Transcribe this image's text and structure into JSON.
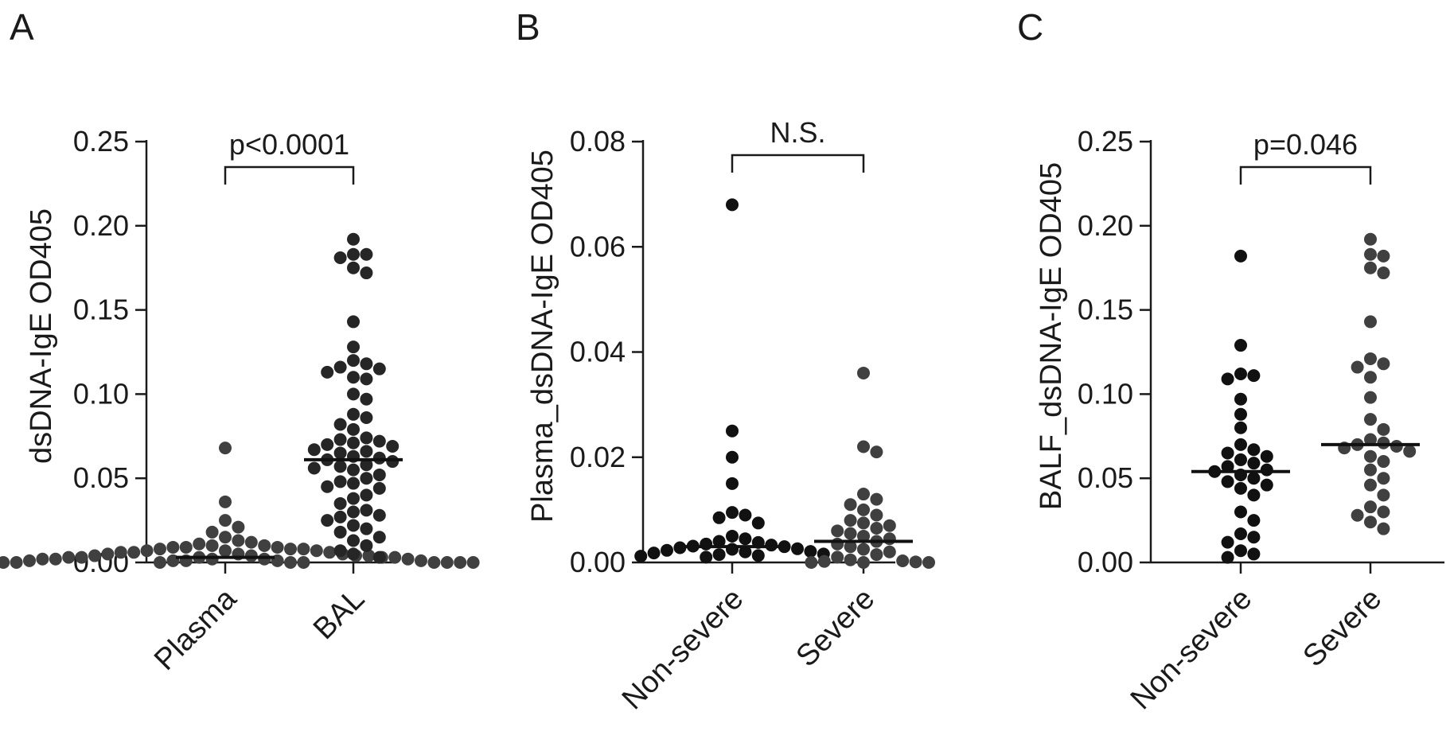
{
  "chart_data": [
    {
      "type": "scatter",
      "panel_label": "A",
      "ylabel": "dsDNA-IgE OD405",
      "ylim": [
        0,
        0.25
      ],
      "yticks": [
        "0.00",
        "0.05",
        "0.10",
        "0.15",
        "0.20",
        "0.25"
      ],
      "categories": [
        "Plasma",
        "BAL"
      ],
      "significance": "p<0.0001",
      "series": [
        {
          "color": "#404040",
          "median": 0.003,
          "values": [
            0.068,
            0.036,
            0.025,
            0.021,
            0.018,
            0.015,
            0.013,
            0.012,
            0.011,
            0.01,
            0.01,
            0.009,
            0.009,
            0.009,
            0.008,
            0.008,
            0.008,
            0.007,
            0.007,
            0.007,
            0.006,
            0.006,
            0.006,
            0.005,
            0.005,
            0.005,
            0.004,
            0.004,
            0.004,
            0.004,
            0.003,
            0.003,
            0.003,
            0.003,
            0.003,
            0.002,
            0.002,
            0.002,
            0.002,
            0.002,
            0.001,
            0.001,
            0.001,
            0.001,
            0.001,
            0.0,
            0.0,
            0.0,
            0.0,
            0.0,
            0.0,
            0.0,
            0.0,
            0.0,
            0.0
          ]
        },
        {
          "color": "#262626",
          "median": 0.061,
          "values": [
            0.192,
            0.183,
            0.183,
            0.181,
            0.175,
            0.172,
            0.143,
            0.128,
            0.12,
            0.118,
            0.116,
            0.115,
            0.113,
            0.11,
            0.109,
            0.1,
            0.097,
            0.088,
            0.086,
            0.082,
            0.079,
            0.074,
            0.073,
            0.072,
            0.071,
            0.07,
            0.069,
            0.067,
            0.066,
            0.065,
            0.063,
            0.062,
            0.061,
            0.06,
            0.058,
            0.057,
            0.056,
            0.055,
            0.052,
            0.05,
            0.048,
            0.047,
            0.045,
            0.044,
            0.04,
            0.038,
            0.035,
            0.031,
            0.03,
            0.028,
            0.027,
            0.025,
            0.022,
            0.02,
            0.018,
            0.015,
            0.013,
            0.01,
            0.007,
            0.005,
            0.003
          ]
        }
      ]
    },
    {
      "type": "scatter",
      "panel_label": "B",
      "ylabel": "Plasma_dsDNA-IgE OD405",
      "ylim": [
        0,
        0.08
      ],
      "yticks": [
        "0.00",
        "0.02",
        "0.04",
        "0.06",
        "0.08"
      ],
      "categories": [
        "Non-severe",
        "Severe"
      ],
      "significance": "N.S.",
      "series": [
        {
          "color": "#111111",
          "median": 0.003,
          "values": [
            0.068,
            0.025,
            0.02,
            0.015,
            0.0095,
            0.009,
            0.0085,
            0.0075,
            0.005,
            0.0045,
            0.004,
            0.0038,
            0.0035,
            0.0033,
            0.0031,
            0.003,
            0.0028,
            0.0026,
            0.0025,
            0.0023,
            0.0021,
            0.002,
            0.0018,
            0.0016,
            0.0015,
            0.0013,
            0.0012,
            0.001
          ]
        },
        {
          "color": "#404040",
          "median": 0.004,
          "values": [
            0.036,
            0.022,
            0.021,
            0.013,
            0.012,
            0.011,
            0.01,
            0.009,
            0.008,
            0.0075,
            0.007,
            0.0065,
            0.006,
            0.0055,
            0.005,
            0.0045,
            0.004,
            0.0035,
            0.003,
            0.0025,
            0.002,
            0.0015,
            0.001,
            0.0005,
            0.0003,
            0.0002,
            0.0001,
            0.0,
            0.0,
            0.0
          ]
        }
      ]
    },
    {
      "type": "scatter",
      "panel_label": "C",
      "ylabel": "BALF_dsDNA-IgE OD405",
      "ylim": [
        0,
        0.25
      ],
      "yticks": [
        "0.00",
        "0.05",
        "0.10",
        "0.15",
        "0.20",
        "0.25"
      ],
      "categories": [
        "Non-severe",
        "Severe"
      ],
      "significance": "p=0.046",
      "series": [
        {
          "color": "#111111",
          "median": 0.054,
          "values": [
            0.182,
            0.129,
            0.112,
            0.111,
            0.109,
            0.097,
            0.088,
            0.08,
            0.07,
            0.067,
            0.065,
            0.063,
            0.061,
            0.059,
            0.057,
            0.055,
            0.054,
            0.052,
            0.05,
            0.048,
            0.046,
            0.044,
            0.04,
            0.03,
            0.025,
            0.017,
            0.015,
            0.012,
            0.007,
            0.005,
            0.003
          ]
        },
        {
          "color": "#404040",
          "median": 0.07,
          "values": [
            0.192,
            0.183,
            0.182,
            0.175,
            0.172,
            0.143,
            0.121,
            0.118,
            0.116,
            0.11,
            0.098,
            0.085,
            0.079,
            0.073,
            0.071,
            0.07,
            0.069,
            0.068,
            0.066,
            0.063,
            0.06,
            0.055,
            0.05,
            0.046,
            0.04,
            0.033,
            0.03,
            0.028,
            0.024,
            0.02
          ]
        }
      ]
    }
  ]
}
